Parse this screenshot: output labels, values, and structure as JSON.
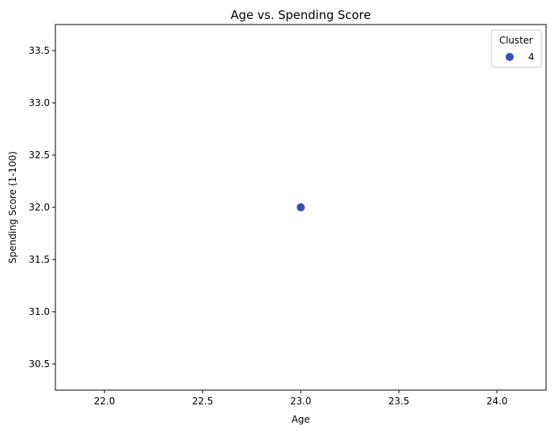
{
  "chart_data": {
    "type": "scatter",
    "title": "Age vs. Spending Score",
    "xlabel": "Age",
    "ylabel": "Spending Score (1-100)",
    "xlim": [
      21.75,
      24.25
    ],
    "ylim": [
      30.25,
      33.75
    ],
    "xticks": [
      22.0,
      22.5,
      23.0,
      23.5,
      24.0
    ],
    "xtick_labels": [
      "22.0",
      "22.5",
      "23.0",
      "23.5",
      "24.0"
    ],
    "yticks": [
      30.5,
      31.0,
      31.5,
      32.0,
      32.5,
      33.0,
      33.5
    ],
    "ytick_labels": [
      "30.5",
      "31.0",
      "31.5",
      "32.0",
      "32.5",
      "33.0",
      "33.5"
    ],
    "grid": false,
    "legend": {
      "title": "Cluster",
      "placement": "top-right"
    },
    "series": [
      {
        "name": "4",
        "color": "#3b4cc0",
        "points": [
          {
            "x": 23.0,
            "y": 32.0
          }
        ]
      }
    ]
  }
}
